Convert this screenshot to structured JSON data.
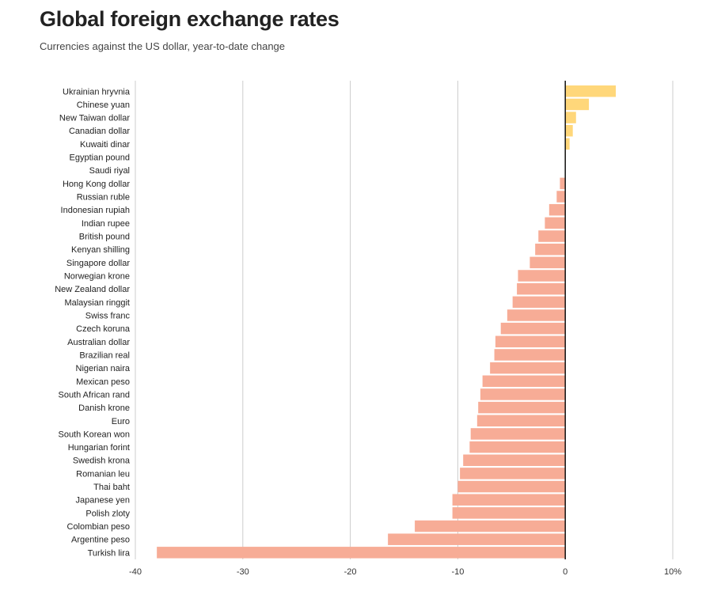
{
  "title": "Global foreign exchange rates",
  "subtitle": "Currencies against the US dollar, year-to-date change",
  "colors": {
    "positive": "#ffd77a",
    "negative": "#f7ac96",
    "grid": "#cccccc",
    "zero": "#111111"
  },
  "chart_data": {
    "type": "bar",
    "orientation": "horizontal",
    "xlim": [
      -40,
      10
    ],
    "xticks": [
      "-40",
      "-30",
      "-20",
      "-10",
      "0",
      "10%"
    ],
    "grid": true,
    "categories": [
      "Ukrainian hryvnia",
      "Chinese yuan",
      "New Taiwan dollar",
      "Canadian dollar",
      "Kuwaiti dinar",
      "Egyptian pound",
      "Saudi riyal",
      "Hong Kong dollar",
      "Russian ruble",
      "Indonesian rupiah",
      "Indian rupee",
      "British pound",
      "Kenyan shilling",
      "Singapore dollar",
      "Norwegian krone",
      "New Zealand dollar",
      "Malaysian ringgit",
      "Swiss franc",
      "Czech koruna",
      "Australian dollar",
      "Brazilian real",
      "Nigerian naira",
      "Mexican peso",
      "South African rand",
      "Danish krone",
      "Euro",
      "South Korean won",
      "Hungarian forint",
      "Swedish krona",
      "Romanian leu",
      "Thai baht",
      "Japanese yen",
      "Polish zloty",
      "Colombian peso",
      "Argentine peso",
      "Turkish lira"
    ],
    "values": [
      4.7,
      2.2,
      1.0,
      0.7,
      0.4,
      0.05,
      0.0,
      -0.5,
      -0.8,
      -1.5,
      -1.9,
      -2.5,
      -2.8,
      -3.3,
      -4.4,
      -4.5,
      -4.9,
      -5.4,
      -6.0,
      -6.5,
      -6.6,
      -7.0,
      -7.7,
      -7.9,
      -8.1,
      -8.2,
      -8.8,
      -8.9,
      -9.5,
      -9.8,
      -10.0,
      -10.5,
      -10.5,
      -14.0,
      -16.5,
      -38.0
    ]
  }
}
